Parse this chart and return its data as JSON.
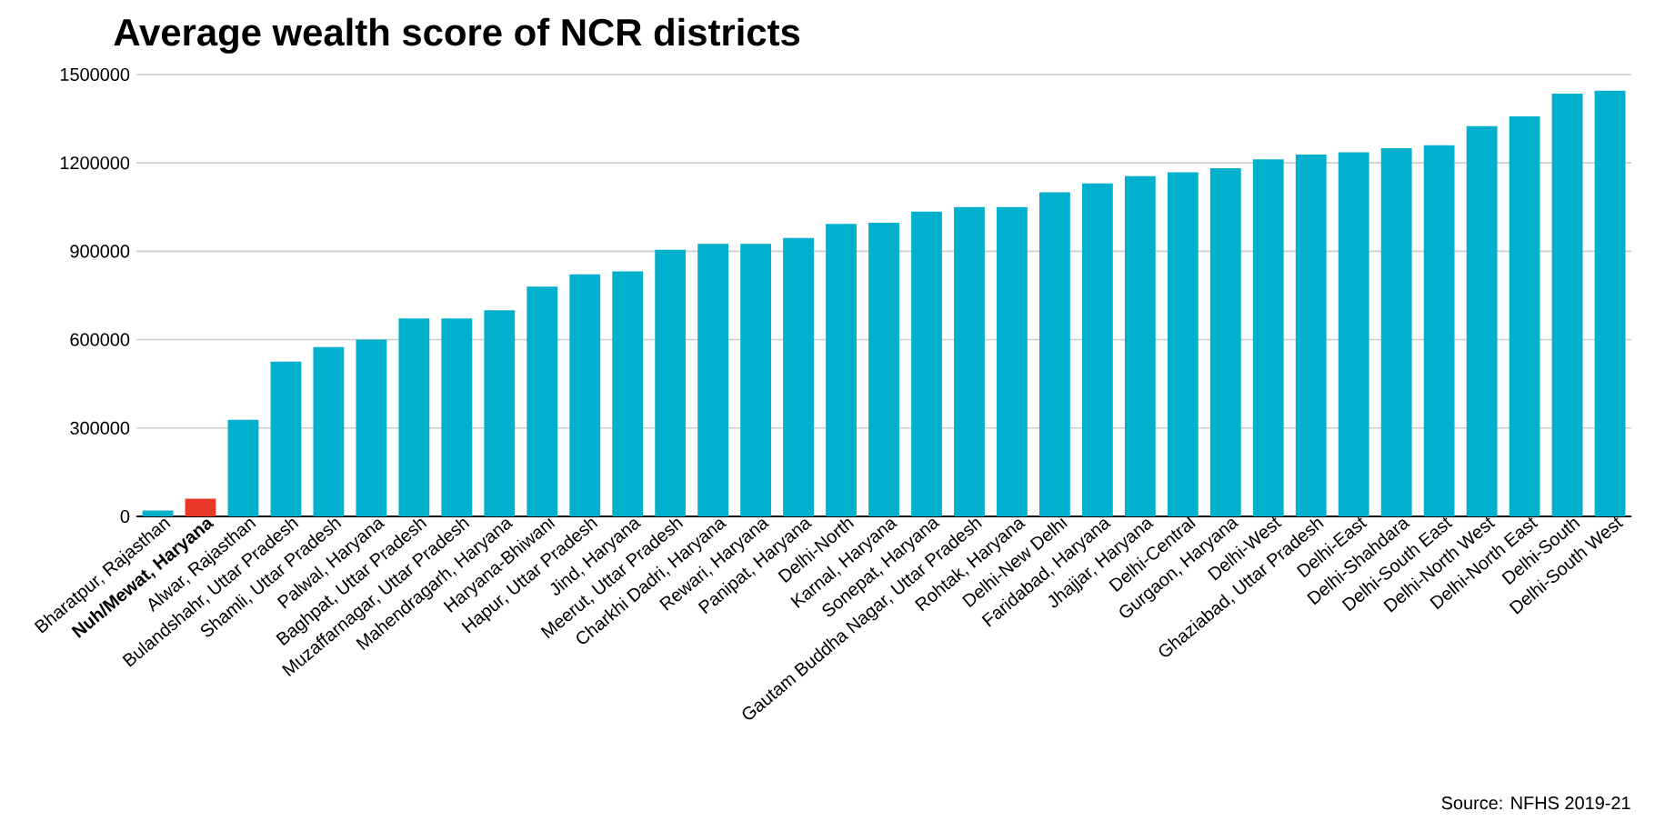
{
  "chart_data": {
    "type": "bar",
    "title": "Average wealth score of NCR districts",
    "categories": [
      "Bharatpur, Rajasthan",
      "**Nuh/Mewat, Haryana**",
      "Alwar, Rajasthan",
      "Bulandshahr, Uttar Pradesh",
      "Shamli, Uttar Pradesh",
      "Palwal, Haryana",
      "Baghpat, Uttar Pradesh",
      "Muzaffarnagar, Uttar Pradesh",
      "Mahendragarh, Haryana",
      "Haryana-Bhiwani",
      "Hapur, Uttar Pradesh",
      "Jind, Haryana",
      "Meerut, Uttar Pradesh",
      "Charkhi Dadri, Haryana",
      "Rewari, Haryana",
      "Panipat, Haryana",
      "Delhi-North",
      "Karnal, Haryana",
      "Sonepat, Haryana",
      "Gautam Buddha Nagar, Uttar Pradesh",
      "Rohtak, Haryana",
      "Delhi-New Delhi",
      "Faridabad, Haryana",
      "Jhajjar, Haryana",
      "Delhi-Central",
      "Gurgaon, Haryana",
      "Delhi-West",
      "Ghaziabad, Uttar Pradesh",
      "Delhi-East",
      "Delhi-Shahdara",
      "Delhi-South East",
      "Delhi-North West",
      "Delhi-North East",
      "Delhi-South",
      "Delhi-South West"
    ],
    "values": [
      20000,
      60000,
      328000,
      525000,
      575000,
      600000,
      672000,
      672000,
      700000,
      780000,
      822000,
      832000,
      905000,
      925000,
      925000,
      945000,
      993000,
      997000,
      1035000,
      1050000,
      1050000,
      1100000,
      1130000,
      1155000,
      1168000,
      1182000,
      1212000,
      1228000,
      1236000,
      1250000,
      1260000,
      1325000,
      1358000,
      1435000,
      1445000
    ],
    "colors": [
      "#00b0cc",
      "#e8382a",
      "#00b0cc",
      "#00b0cc",
      "#00b0cc",
      "#00b0cc",
      "#00b0cc",
      "#00b0cc",
      "#00b0cc",
      "#00b0cc",
      "#00b0cc",
      "#00b0cc",
      "#00b0cc",
      "#00b0cc",
      "#00b0cc",
      "#00b0cc",
      "#00b0cc",
      "#00b0cc",
      "#00b0cc",
      "#00b0cc",
      "#00b0cc",
      "#00b0cc",
      "#00b0cc",
      "#00b0cc",
      "#00b0cc",
      "#00b0cc",
      "#00b0cc",
      "#00b0cc",
      "#00b0cc",
      "#00b0cc",
      "#00b0cc",
      "#00b0cc",
      "#00b0cc",
      "#00b0cc",
      "#00b0cc"
    ],
    "ylim": [
      0,
      1500000
    ],
    "yticks": [
      0,
      300000,
      600000,
      900000,
      1200000,
      1500000
    ],
    "grid": "y",
    "annotations": [
      "Source: NFHS 2019-21"
    ]
  }
}
